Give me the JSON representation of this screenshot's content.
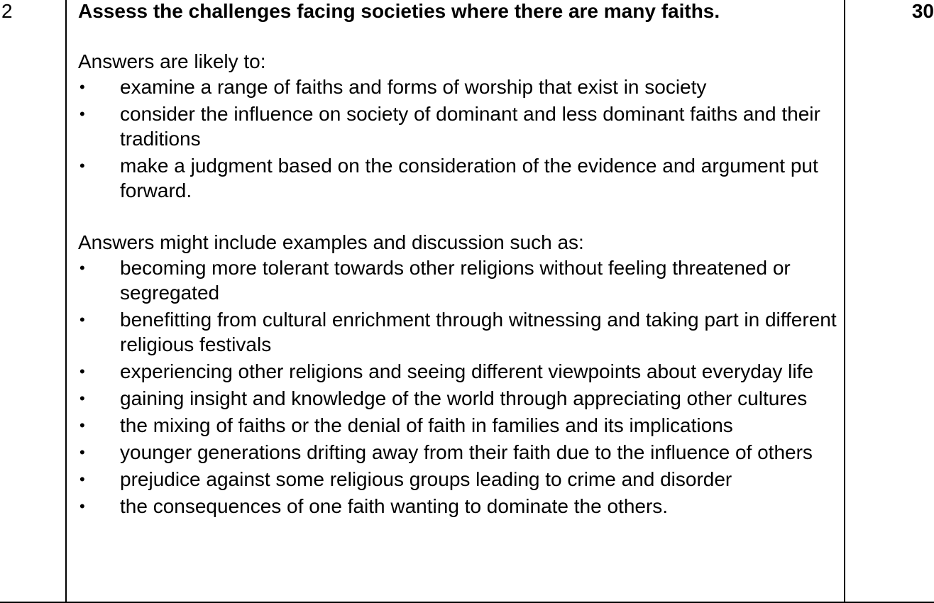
{
  "question_number": "2",
  "marks": "30",
  "question": "Assess the challenges facing societies where there are many faiths.",
  "likely": {
    "intro": "Answers are likely to:",
    "items": [
      "examine a range of faiths and forms of worship that exist in society",
      "consider the influence on society of dominant and less dominant faiths and their traditions",
      "make a judgment based on the consideration of the evidence and argument put forward."
    ]
  },
  "might_include": {
    "intro": "Answers might include examples and discussion such as:",
    "items": [
      "becoming more tolerant towards other religions without feeling threatened or segregated",
      "benefitting from cultural enrichment through witnessing and taking part in different religious festivals",
      "experiencing other religions and seeing different viewpoints about everyday life",
      "gaining insight and knowledge of the world through appreciating other cultures",
      "the mixing of faiths or the denial of faith in families and its implications",
      "younger generations drifting away from their faith due to the influence of others",
      "prejudice against some religious groups leading to crime and disorder",
      "the consequences of one faith wanting to dominate the others."
    ]
  },
  "bullet_glyph": "•"
}
